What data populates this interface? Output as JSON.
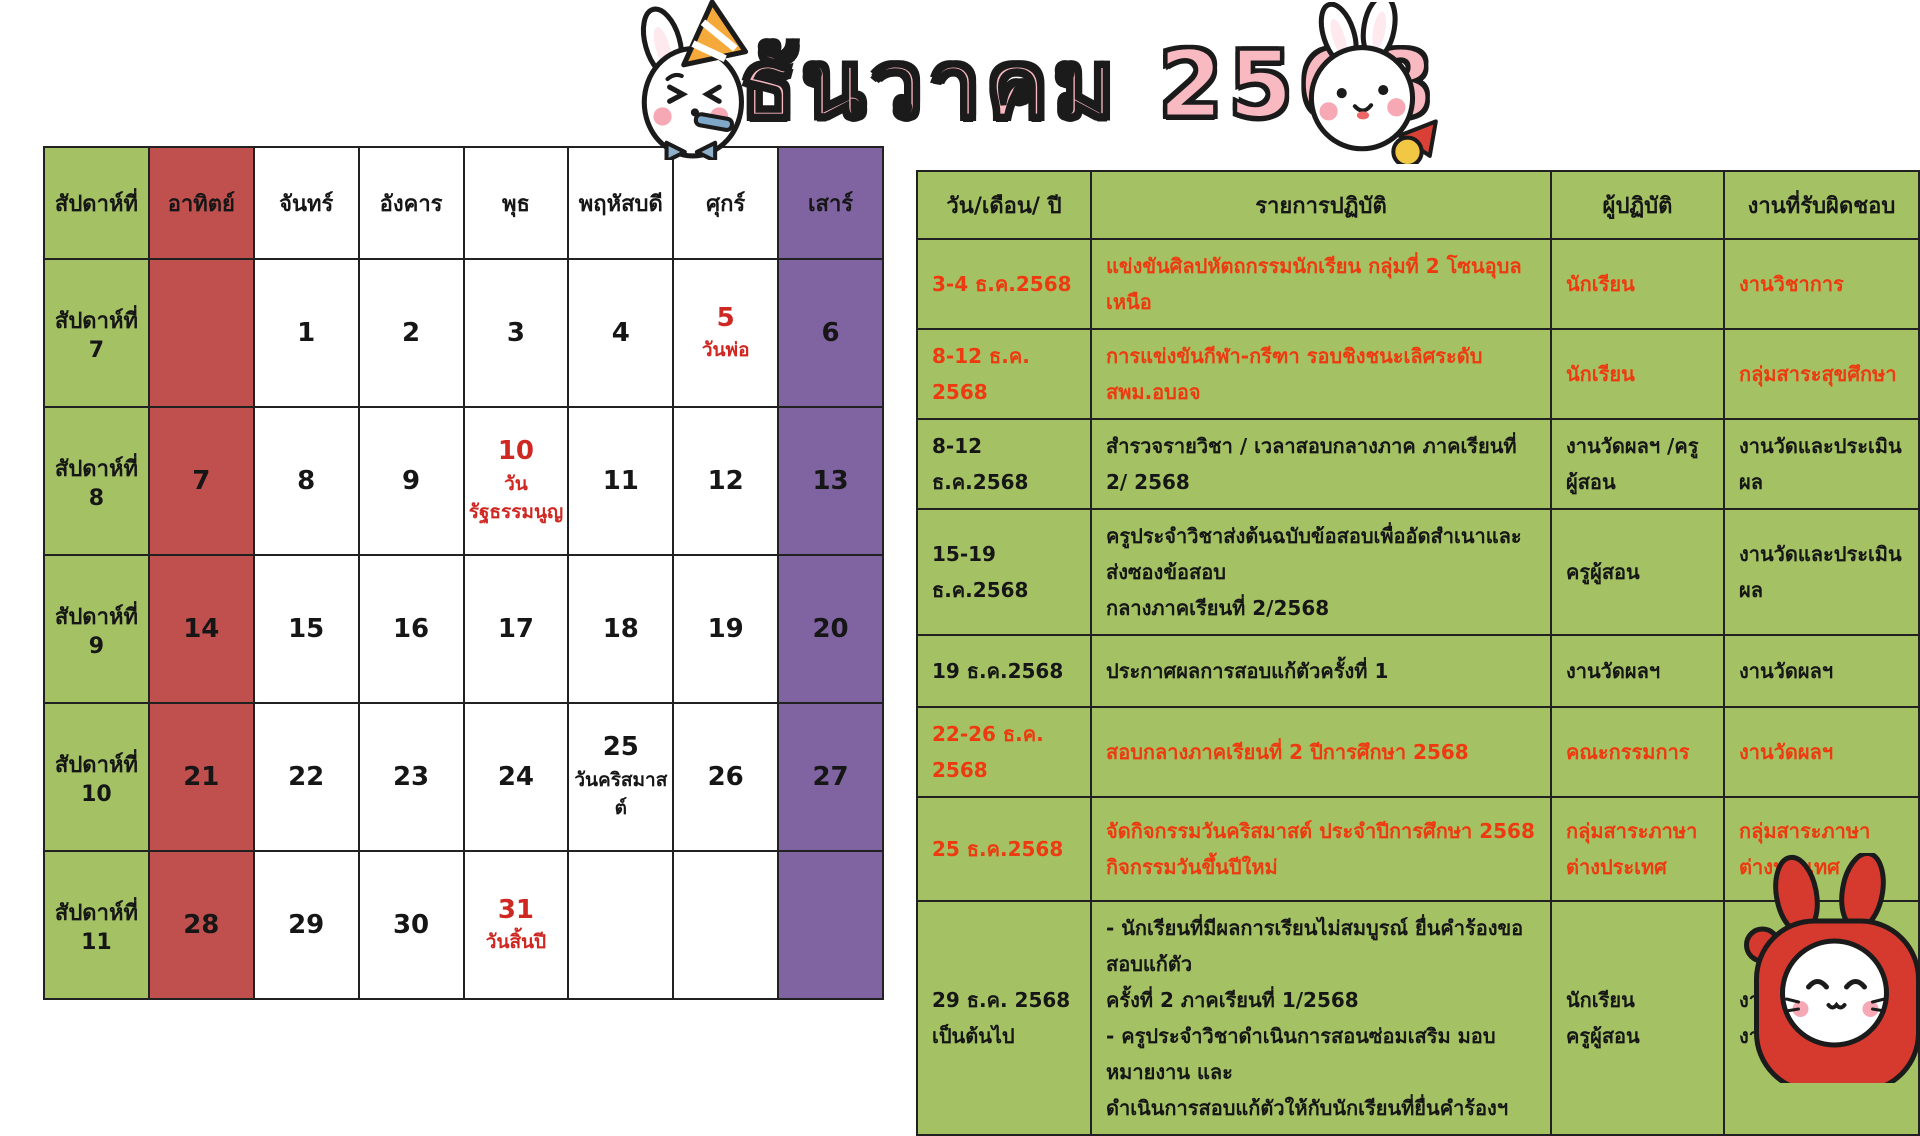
{
  "title": "ธันวาคม 2568",
  "colors": {
    "green": "#a4c263",
    "sun_red": "#c0504d",
    "sat_purple": "#8064a2",
    "cal_red": "#cf2823",
    "sched_red": "#ee3a10",
    "title_pink": "#f9b9c1"
  },
  "calendar": {
    "headers": [
      "สัปดาห์ที่",
      "อาทิตย์",
      "จันทร์",
      "อังคาร",
      "พุธ",
      "พฤหัสบดี",
      "ศุกร์",
      "เสาร์"
    ],
    "rows": [
      {
        "week": "สัปดาห์ที่ 7",
        "days": [
          {
            "n": ""
          },
          {
            "n": "1"
          },
          {
            "n": "2"
          },
          {
            "n": "3"
          },
          {
            "n": "4"
          },
          {
            "n": "5",
            "note": "วันพ่อ",
            "red": true
          },
          {
            "n": "6"
          }
        ]
      },
      {
        "week": "สัปดาห์ที่ 8",
        "days": [
          {
            "n": "7"
          },
          {
            "n": "8"
          },
          {
            "n": "9"
          },
          {
            "n": "10",
            "note": "วัน\nรัฐธรรมนูญ",
            "red": true
          },
          {
            "n": "11"
          },
          {
            "n": "12"
          },
          {
            "n": "13"
          }
        ]
      },
      {
        "week": "สัปดาห์ที่ 9",
        "days": [
          {
            "n": "14"
          },
          {
            "n": "15"
          },
          {
            "n": "16"
          },
          {
            "n": "17"
          },
          {
            "n": "18"
          },
          {
            "n": "19"
          },
          {
            "n": "20"
          }
        ]
      },
      {
        "week": "สัปดาห์ที่ 10",
        "days": [
          {
            "n": "21"
          },
          {
            "n": "22"
          },
          {
            "n": "23"
          },
          {
            "n": "24"
          },
          {
            "n": "25",
            "note": "วันคริสมาสต์",
            "red": false
          },
          {
            "n": "26"
          },
          {
            "n": "27"
          }
        ]
      },
      {
        "week": "สัปดาห์ที่ 11",
        "days": [
          {
            "n": "28"
          },
          {
            "n": "29"
          },
          {
            "n": "30"
          },
          {
            "n": "31",
            "note": "วันสิ้นปี",
            "red": true
          },
          {
            "n": ""
          },
          {
            "n": ""
          },
          {
            "n": ""
          }
        ]
      }
    ]
  },
  "schedule": {
    "headers": [
      "วัน/เดือน/ ปี",
      "รายการปฏิบัติ",
      "ผู้ปฏิบัติ",
      "งานที่รับผิดชอบ"
    ],
    "rows": [
      {
        "date": "3-4 ธ.ค.2568",
        "activity": "แข่งขันศิลปหัตถกรรมนักเรียน กลุ่มที่ 2 โซนอุบลเหนือ",
        "person": "นักเรียน",
        "responsible": "งานวิชาการ",
        "red": true
      },
      {
        "date": "8-12 ธ.ค. 2568",
        "activity": "การแข่งขันกีฬา-กรีฑา รอบชิงชนะเลิศระดับ สพม.อบอจ",
        "person": "นักเรียน",
        "responsible": "กลุ่มสาระสุขศึกษา",
        "red": true
      },
      {
        "date": "8-12 ธ.ค.2568",
        "activity": "สำรวจรายวิชา / เวลาสอบกลางภาค ภาคเรียนที่ 2/ 2568",
        "person": "งานวัดผลฯ /ครูผู้สอน",
        "responsible": "งานวัดและประเมินผล",
        "red": false
      },
      {
        "date": "15-19\nธ.ค.2568",
        "activity": "ครูประจำวิชาส่งต้นฉบับข้อสอบเพื่ออัดสำเนาและส่งซองข้อสอบ\nกลางภาคเรียนที่ 2/2568",
        "person": "ครูผู้สอน",
        "responsible": "งานวัดและประเมินผล",
        "red": false
      },
      {
        "date": "19 ธ.ค.2568",
        "activity": "ประกาศผลการสอบแก้ตัวครั้งที่ 1",
        "person": "งานวัดผลฯ",
        "responsible": "งานวัดผลฯ",
        "red": false
      },
      {
        "date": "22-26 ธ.ค. 2568",
        "activity": "สอบกลางภาคเรียนที่ 2 ปีการศึกษา 2568",
        "person": "คณะกรรมการ",
        "responsible": "งานวัดผลฯ",
        "red": true
      },
      {
        "date": "25 ธ.ค.2568",
        "activity": "จัดกิจกรรมวันคริสมาสต์ ประจำปีการศึกษา 2568\nกิจกรรมวันขึ้นปีใหม่",
        "person": "กลุ่มสาระภาษาต่างประเทศ",
        "responsible": "กลุ่มสาระภาษาต่างประเทศ",
        "red": true
      },
      {
        "date": "29 ธ.ค. 2568\nเป็นต้นไป",
        "activity": "- นักเรียนที่มีผลการเรียนไม่สมบูรณ์ ยื่นคำร้องขอสอบแก้ตัว\nครั้งที่ 2 ภาคเรียนที่ 1/2568\n- ครูประจำวิชาดำเนินการสอนซ่อมเสริม มอบหมายงาน และ\nดำเนินการสอบแก้ตัวให้กับนักเรียนที่ยื่นคำร้องฯ",
        "person": "นักเรียน\nครูผู้สอน",
        "responsible": "งานวัดผลฯ\nงานวัดผลฯ",
        "red": false
      }
    ]
  },
  "decorations": {
    "left_sticker": "rabbit-party-hat-sticker",
    "right_sticker": "rabbit-popper-sticker",
    "corner_sticker": "rabbit-red-hood-sticker"
  }
}
